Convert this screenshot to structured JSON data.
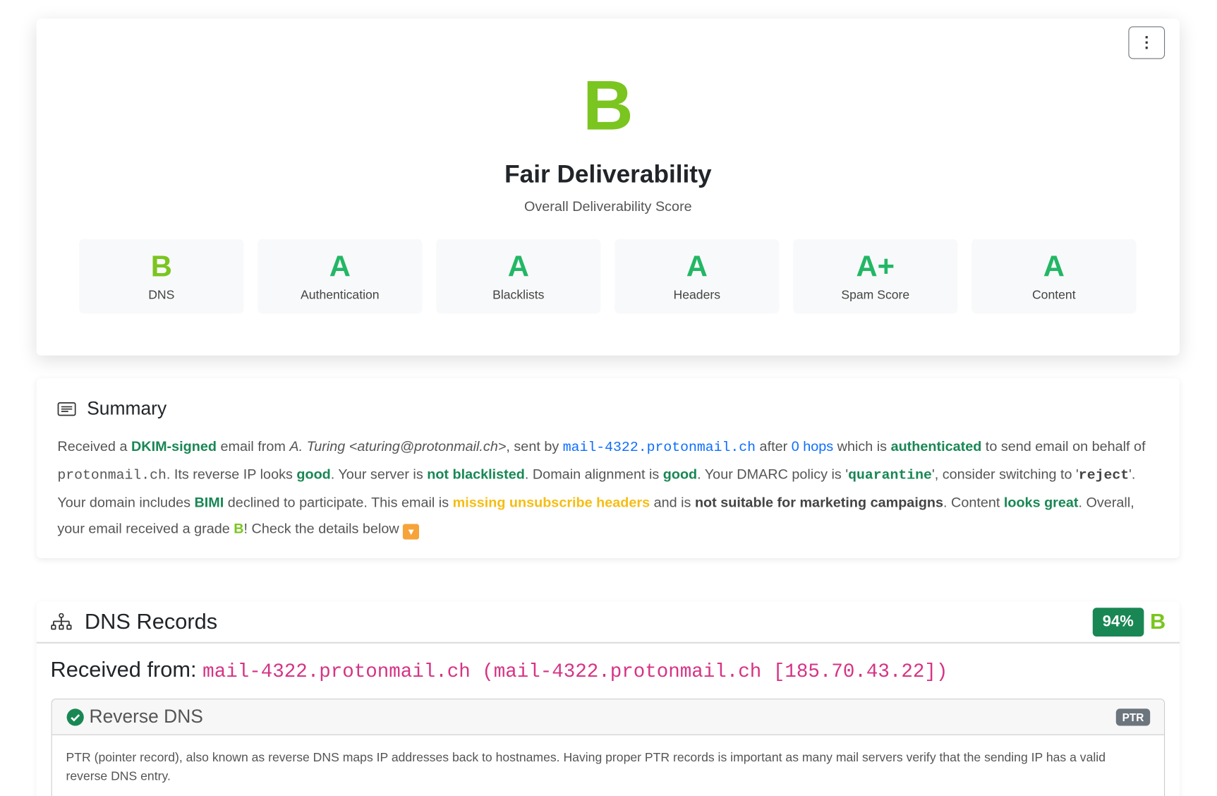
{
  "hero": {
    "menu_icon": "kebab-vertical-icon",
    "menu_glyph": "⋮",
    "grade": "B",
    "title": "Fair Deliverability",
    "subtitle": "Overall Deliverability Score",
    "categories": [
      {
        "grade": "B",
        "label": "DNS"
      },
      {
        "grade": "A",
        "label": "Authentication"
      },
      {
        "grade": "A",
        "label": "Blacklists"
      },
      {
        "grade": "A",
        "label": "Headers"
      },
      {
        "grade": "A+",
        "label": "Spam Score"
      },
      {
        "grade": "A",
        "label": "Content"
      }
    ]
  },
  "summary": {
    "title": "Summary",
    "icon": "document-lines-icon",
    "t": [
      "Received a ",
      "DKIM-signed",
      " email from ",
      "A. Turing <aturing@protonmail.ch>",
      ", sent by ",
      "mail-4322.protonmail.ch",
      " after ",
      "0 hops",
      " which is ",
      "authenticated",
      " to send email on behalf of ",
      "protonmail.ch",
      ". Its reverse IP looks ",
      "good",
      ". Your server is ",
      "not blacklisted",
      ". Domain alignment is ",
      "good",
      ". Your DMARC policy is '",
      "quarantine",
      "', consider switching to '",
      "reject",
      "'. Your domain includes ",
      "BIMI",
      " declined to participate. This email is ",
      "missing unsubscribe headers",
      " and is ",
      "not suitable for marketing campaigns",
      ". Content ",
      "looks great",
      ". Overall, your email received a grade ",
      "B",
      "! Check the details below ",
      "▼"
    ]
  },
  "dns": {
    "title": "DNS Records",
    "icon": "sitemap-icon",
    "percent": "94%",
    "grade": "B",
    "received_label": "Received from:",
    "received_value": "mail-4322.protonmail.ch (mail-4322.protonmail.ch [185.70.43.22])",
    "reverse": {
      "title": "Reverse DNS",
      "badge": "PTR",
      "status": "success",
      "description": "PTR (pointer record), also known as reverse DNS maps IP addresses back to hostnames. Having proper PTR records is important as many mail servers verify that the sending IP has a valid reverse DNS entry."
    }
  },
  "colors": {
    "grade_b": "#7ac51f",
    "grade_a": "#22b765",
    "success": "#198754",
    "link": "#0d6efd",
    "warning": "#f5bd14",
    "code": "#d63384"
  }
}
